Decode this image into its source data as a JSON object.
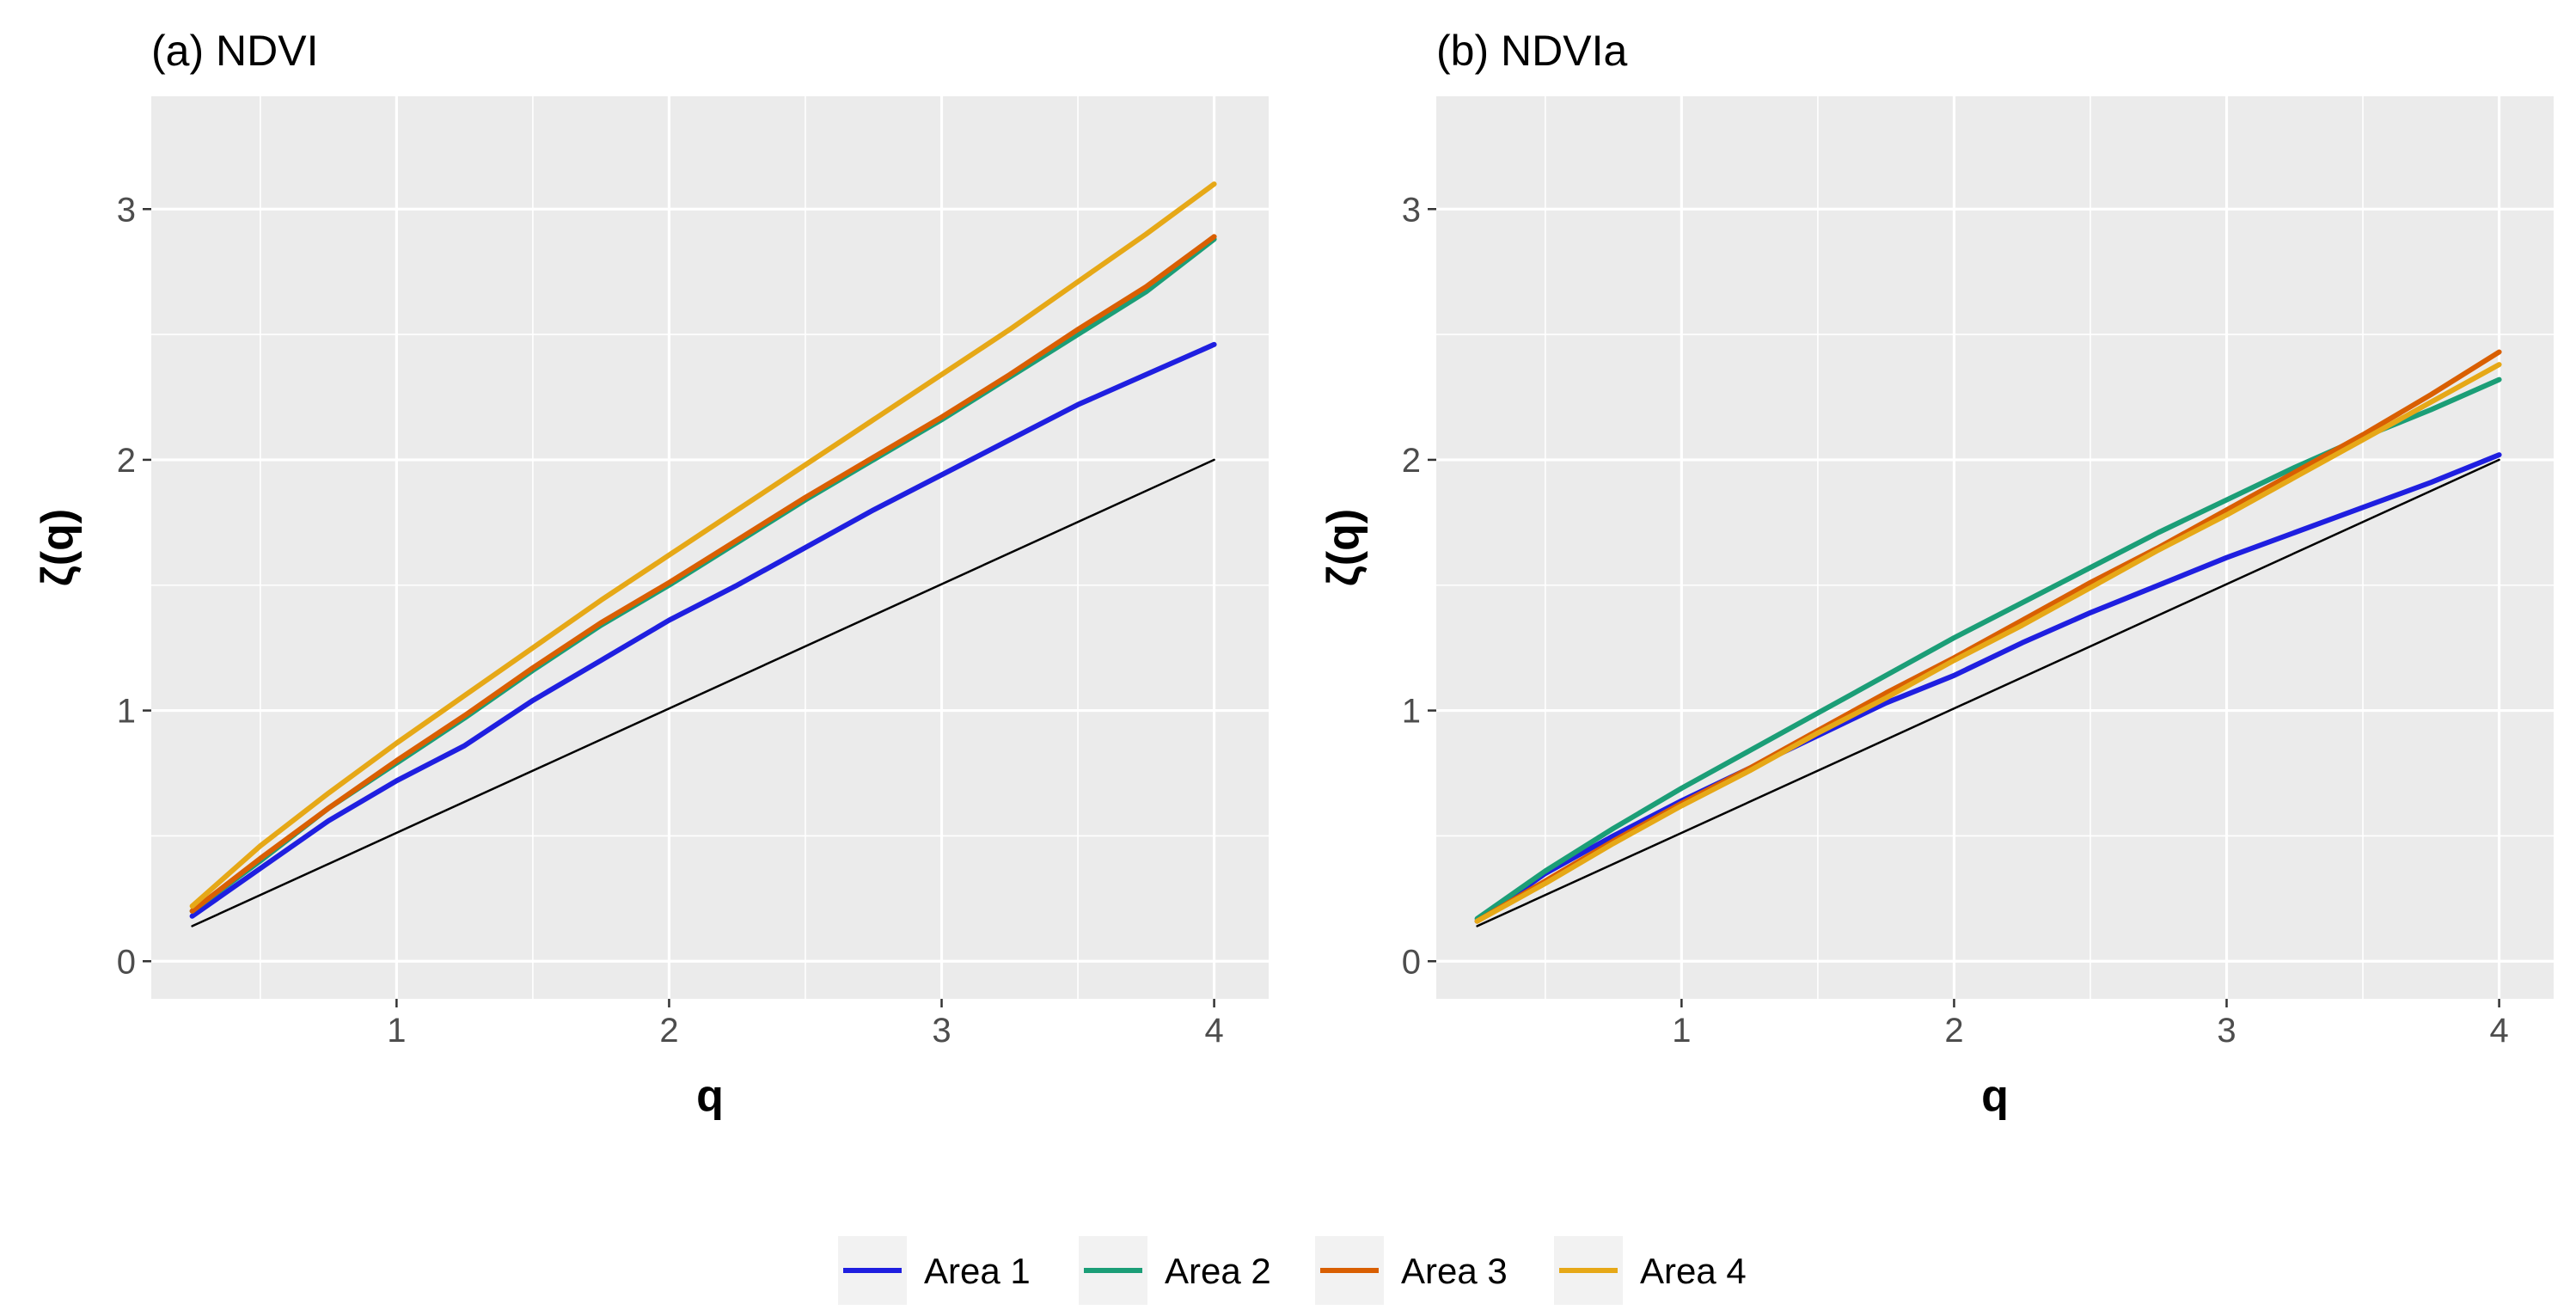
{
  "chart_data": [
    {
      "type": "line",
      "title": "(a) NDVI",
      "xlabel": "q",
      "ylabel": "ζ(q)",
      "xlim": [
        0.1,
        4.2
      ],
      "ylim": [
        -0.15,
        3.45
      ],
      "xticks": [
        1,
        2,
        3,
        4
      ],
      "yticks": [
        0,
        1,
        2,
        3
      ],
      "grid": true,
      "series": [
        {
          "name": "reference",
          "color": "#000000",
          "x": [
            0.25,
            4.0
          ],
          "y": [
            0.14,
            2.0
          ]
        },
        {
          "name": "Area 1",
          "color": "#1f1fe0",
          "x": [
            0.25,
            0.5,
            0.75,
            1.0,
            1.25,
            1.5,
            1.75,
            2.0,
            2.25,
            2.5,
            2.75,
            3.0,
            3.25,
            3.5,
            3.75,
            4.0
          ],
          "y": [
            0.18,
            0.37,
            0.56,
            0.72,
            0.86,
            1.04,
            1.2,
            1.36,
            1.5,
            1.65,
            1.8,
            1.94,
            2.08,
            2.22,
            2.34,
            2.46
          ]
        },
        {
          "name": "Area 2",
          "color": "#1b9e77",
          "x": [
            0.25,
            0.5,
            0.75,
            1.0,
            1.25,
            1.5,
            1.75,
            2.0,
            2.25,
            2.5,
            2.75,
            3.0,
            3.25,
            3.5,
            3.75,
            4.0
          ],
          "y": [
            0.2,
            0.4,
            0.61,
            0.79,
            0.97,
            1.16,
            1.34,
            1.5,
            1.67,
            1.84,
            2.0,
            2.16,
            2.33,
            2.5,
            2.67,
            2.88
          ]
        },
        {
          "name": "Area 3",
          "color": "#d95f02",
          "x": [
            0.25,
            0.5,
            0.75,
            1.0,
            1.25,
            1.5,
            1.75,
            2.0,
            2.25,
            2.5,
            2.75,
            3.0,
            3.25,
            3.5,
            3.75,
            4.0
          ],
          "y": [
            0.2,
            0.41,
            0.61,
            0.8,
            0.98,
            1.17,
            1.35,
            1.51,
            1.68,
            1.85,
            2.01,
            2.17,
            2.34,
            2.52,
            2.69,
            2.89
          ]
        },
        {
          "name": "Area 4",
          "color": "#e6a817",
          "x": [
            0.25,
            0.5,
            0.75,
            1.0,
            1.25,
            1.5,
            1.75,
            2.0,
            2.25,
            2.5,
            2.75,
            3.0,
            3.25,
            3.5,
            3.75,
            4.0
          ],
          "y": [
            0.22,
            0.46,
            0.67,
            0.87,
            1.06,
            1.25,
            1.44,
            1.62,
            1.8,
            1.98,
            2.16,
            2.34,
            2.52,
            2.71,
            2.9,
            3.1
          ]
        }
      ]
    },
    {
      "type": "line",
      "title": "(b) NDVIa",
      "xlabel": "q",
      "ylabel": "ζ(q)",
      "xlim": [
        0.1,
        4.2
      ],
      "ylim": [
        -0.15,
        3.45
      ],
      "xticks": [
        1,
        2,
        3,
        4
      ],
      "yticks": [
        0,
        1,
        2,
        3
      ],
      "grid": true,
      "series": [
        {
          "name": "reference",
          "color": "#000000",
          "x": [
            0.25,
            4.0
          ],
          "y": [
            0.14,
            2.0
          ]
        },
        {
          "name": "Area 1",
          "color": "#1f1fe0",
          "x": [
            0.25,
            0.5,
            0.75,
            1.0,
            1.25,
            1.5,
            1.75,
            2.0,
            2.25,
            2.5,
            2.75,
            3.0,
            3.25,
            3.5,
            3.75,
            4.0
          ],
          "y": [
            0.16,
            0.35,
            0.5,
            0.64,
            0.77,
            0.9,
            1.03,
            1.14,
            1.27,
            1.39,
            1.5,
            1.61,
            1.71,
            1.81,
            1.91,
            2.02
          ]
        },
        {
          "name": "Area 2",
          "color": "#1b9e77",
          "x": [
            0.25,
            0.5,
            0.75,
            1.0,
            1.25,
            1.5,
            1.75,
            2.0,
            2.25,
            2.5,
            2.75,
            3.0,
            3.25,
            3.5,
            3.75,
            4.0
          ],
          "y": [
            0.17,
            0.36,
            0.53,
            0.69,
            0.84,
            0.99,
            1.14,
            1.29,
            1.43,
            1.57,
            1.71,
            1.84,
            1.97,
            2.09,
            2.2,
            2.32
          ]
        },
        {
          "name": "Area 3",
          "color": "#d95f02",
          "x": [
            0.25,
            0.5,
            0.75,
            1.0,
            1.25,
            1.5,
            1.75,
            2.0,
            2.25,
            2.5,
            2.75,
            3.0,
            3.25,
            3.5,
            3.75,
            4.0
          ],
          "y": [
            0.16,
            0.32,
            0.48,
            0.63,
            0.77,
            0.92,
            1.07,
            1.21,
            1.36,
            1.51,
            1.65,
            1.8,
            1.95,
            2.1,
            2.26,
            2.43
          ]
        },
        {
          "name": "Area 4",
          "color": "#e6a817",
          "x": [
            0.25,
            0.5,
            0.75,
            1.0,
            1.25,
            1.5,
            1.75,
            2.0,
            2.25,
            2.5,
            2.75,
            3.0,
            3.25,
            3.5,
            3.75,
            4.0
          ],
          "y": [
            0.16,
            0.31,
            0.47,
            0.62,
            0.76,
            0.91,
            1.05,
            1.2,
            1.34,
            1.49,
            1.64,
            1.78,
            1.93,
            2.08,
            2.23,
            2.38
          ]
        }
      ]
    }
  ],
  "legend": {
    "position": "bottom",
    "items": [
      {
        "label": "Area 1",
        "color": "#1f1fe0"
      },
      {
        "label": "Area 2",
        "color": "#1b9e77"
      },
      {
        "label": "Area 3",
        "color": "#d95f02"
      },
      {
        "label": "Area 4",
        "color": "#e6a817"
      }
    ]
  }
}
